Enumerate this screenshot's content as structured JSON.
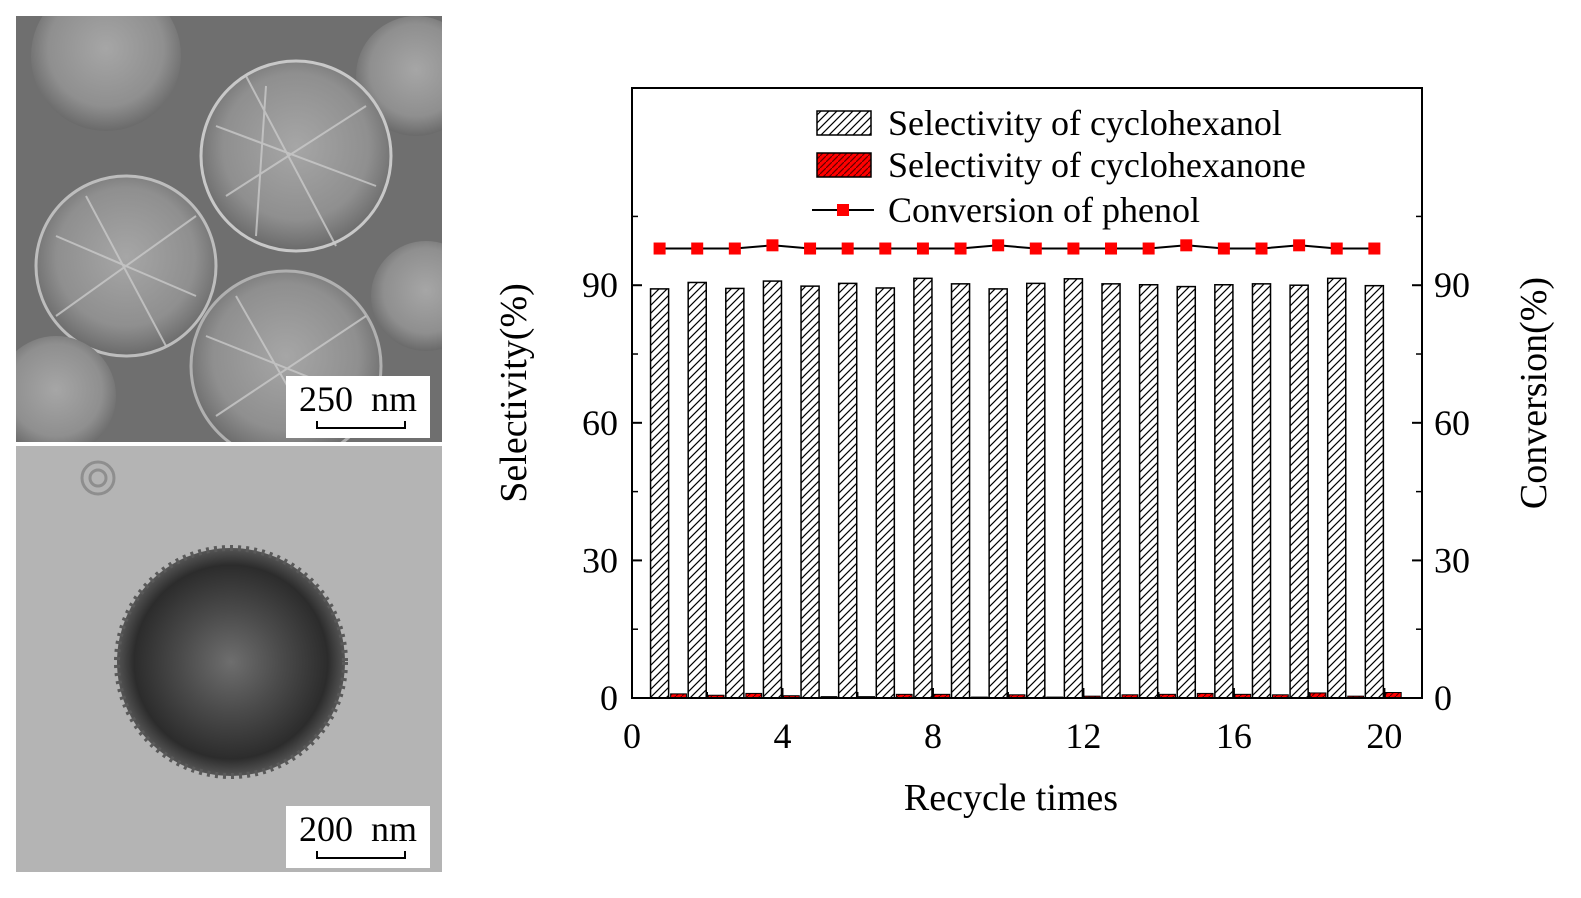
{
  "panels": {
    "sem": {
      "scale_label": "250  nm",
      "scale_value": 250,
      "scale_unit": "nm"
    },
    "tem": {
      "scale_label": "200  nm",
      "scale_value": 200,
      "scale_unit": "nm"
    }
  },
  "chart_data": {
    "type": "bar",
    "title": "",
    "xlabel": "Recycle times",
    "ylabel": "Selectivity(%)",
    "y2label": "Conversion(%)",
    "xlim": [
      0,
      21
    ],
    "xticks": [
      0,
      4,
      8,
      12,
      16,
      20
    ],
    "ylim": [
      0,
      133
    ],
    "yticks": [
      0,
      30,
      60,
      90
    ],
    "y2lim": [
      0,
      133
    ],
    "y2ticks": [
      0,
      30,
      60,
      90
    ],
    "legend_position": "top-right",
    "x": [
      1,
      2,
      3,
      4,
      5,
      6,
      7,
      8,
      9,
      10,
      11,
      12,
      13,
      14,
      15,
      16,
      17,
      18,
      19,
      20
    ],
    "series": [
      {
        "name": "Selectivity of cyclohexanol",
        "kind": "bar",
        "axis": "left",
        "pattern": "hatch-white",
        "values": [
          89.2,
          90.6,
          89.3,
          90.9,
          89.8,
          90.4,
          89.4,
          91.5,
          90.3,
          89.2,
          90.4,
          91.4,
          90.3,
          90.1,
          89.7,
          90.1,
          90.3,
          90.0,
          91.5,
          89.9
        ]
      },
      {
        "name": "Selectivity of cyclohexanone",
        "kind": "bar",
        "axis": "left",
        "pattern": "hatch-red",
        "values": [
          0.9,
          0.6,
          1.0,
          0.5,
          0.3,
          0.3,
          0.8,
          0.8,
          0.2,
          0.7,
          0.2,
          0.4,
          0.7,
          0.8,
          1.0,
          0.8,
          0.7,
          1.1,
          0.4,
          1.2
        ]
      },
      {
        "name": "Conversion of phenol",
        "kind": "line",
        "axis": "right",
        "marker": "square",
        "values": [
          98.0,
          98.0,
          98.0,
          98.7,
          98.0,
          98.0,
          98.0,
          98.0,
          98.0,
          98.7,
          98.0,
          98.0,
          98.0,
          98.0,
          98.7,
          98.0,
          98.0,
          98.7,
          98.0,
          98.0
        ]
      }
    ],
    "colors": {
      "red": "#ff0000",
      "axis": "#000000",
      "bar_fill": "#ffffff"
    }
  }
}
